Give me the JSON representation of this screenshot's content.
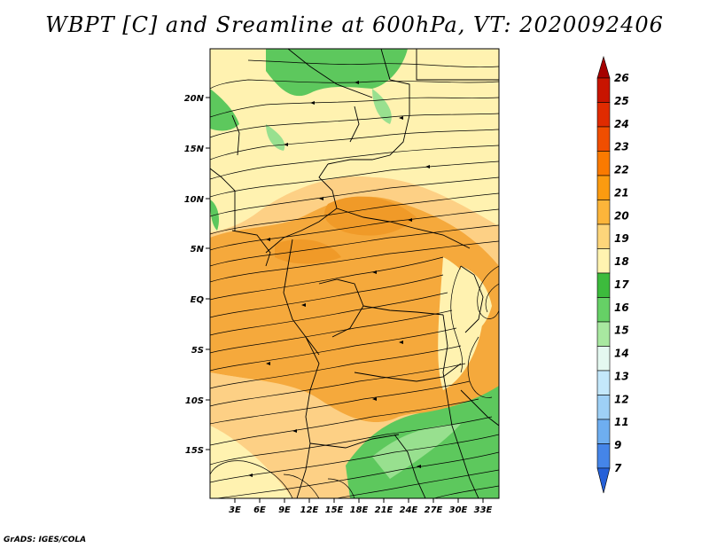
{
  "title": "WBPT [C] and Sreamline at 600hPa, VT: 2020092406",
  "footer": "GrADS: IGES/COLA",
  "lat_labels": [
    "20N",
    "15N",
    "10N",
    "5N",
    "EQ",
    "5S",
    "10S",
    "15S"
  ],
  "lon_labels": [
    "3E",
    "6E",
    "9E",
    "12E",
    "15E",
    "18E",
    "21E",
    "24E",
    "27E",
    "30E",
    "33E"
  ],
  "colorbar": {
    "labels": [
      "26",
      "25",
      "24",
      "23",
      "22",
      "21",
      "20",
      "19",
      "18",
      "17",
      "16",
      "15",
      "14",
      "13",
      "12",
      "11",
      "9",
      "7"
    ],
    "colors": [
      "#a50000",
      "#c81400",
      "#e02b00",
      "#f04e00",
      "#fa7a00",
      "#fb9b10",
      "#fcb53a",
      "#fdd57a",
      "#fff3b0",
      "#3dbb3d",
      "#66d066",
      "#a8e8a0",
      "#e4f8f0",
      "#c4e8fb",
      "#9ed0f6",
      "#6eaef0",
      "#4585e8",
      "#2560d8"
    ]
  },
  "colors": {
    "orange": "#f5a93c",
    "light_orange": "#fdd085",
    "yellow": "#fff2b0",
    "green": "#5dc85d",
    "light_green": "#98e08f"
  }
}
